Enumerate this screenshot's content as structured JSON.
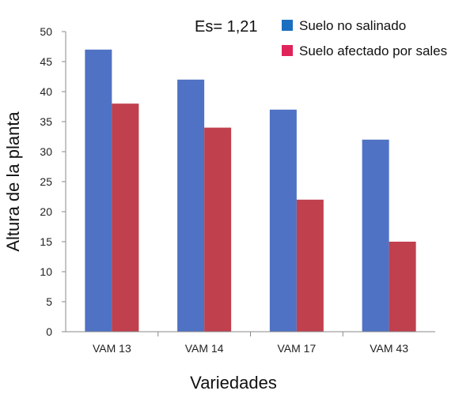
{
  "chart_data": {
    "type": "bar",
    "title": "",
    "annotation": "Es= 1,21",
    "xlabel": "Variedades",
    "ylabel": "Altura de la planta",
    "categories": [
      "VAM 13",
      "VAM 14",
      "VAM 17",
      "VAM 43"
    ],
    "series": [
      {
        "name": "Suelo no salinado",
        "values": [
          47,
          42,
          37,
          32
        ],
        "color": "#4F72C4"
      },
      {
        "name": "Suelo afectado por sales",
        "values": [
          38,
          34,
          22,
          15
        ],
        "color": "#C0404E"
      }
    ],
    "legend_swatch_colors": [
      "#1A6FC0",
      "#E0245A"
    ],
    "ylim": [
      0,
      50
    ],
    "yticks": [
      0,
      5,
      10,
      15,
      20,
      25,
      30,
      35,
      40,
      45,
      50
    ],
    "grid": false,
    "legend_position": "top-right"
  }
}
